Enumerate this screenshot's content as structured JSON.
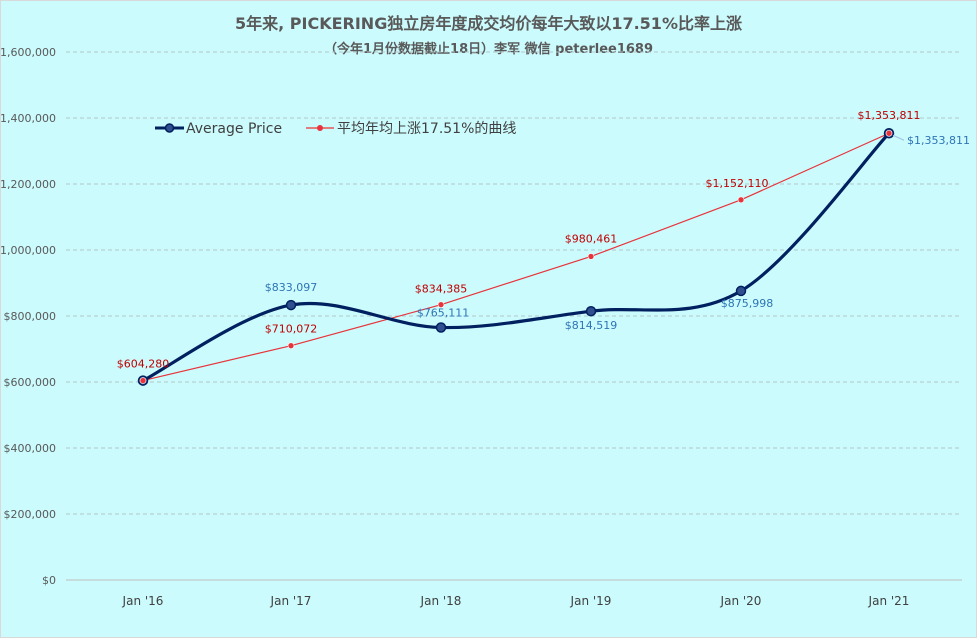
{
  "chart_data": {
    "type": "line",
    "title": "5年来, PICKERING独立房年度成交均价每年大致以17.51%比率上涨",
    "subtitle": "（今年1月份数据截止18日）李军 微信 peterlee1689",
    "categories": [
      "Jan '16",
      "Jan '17",
      "Jan '18",
      "Jan '19",
      "Jan '20",
      "Jan '21"
    ],
    "y_ticks": [
      "$0",
      "$200,000",
      "$400,000",
      "$600,000",
      "$800,000",
      "$1,000,000",
      "$1,200,000",
      "$1,400,000",
      "$1,600,000"
    ],
    "ylim": [
      0,
      1600000
    ],
    "grid": true,
    "legend_position": "top-left",
    "series": [
      {
        "name": "Average Price",
        "color": "#002060",
        "smooth": true,
        "values": [
          604280,
          833097,
          765111,
          814519,
          875998,
          1353811
        ],
        "labels": [
          "",
          "$833,097",
          "$765,111",
          "$814,519",
          "$875,998",
          "$1,353,811"
        ]
      },
      {
        "name": "平均年均上涨17.51%的曲线",
        "color": "#e8333a",
        "smooth": false,
        "values": [
          604280,
          710072,
          834385,
          980461,
          1152110,
          1353811
        ],
        "labels": [
          "$604,280",
          "$710,072",
          "$834,385",
          "$980,461",
          "$1,152,110",
          "$1,353,811"
        ]
      }
    ]
  }
}
